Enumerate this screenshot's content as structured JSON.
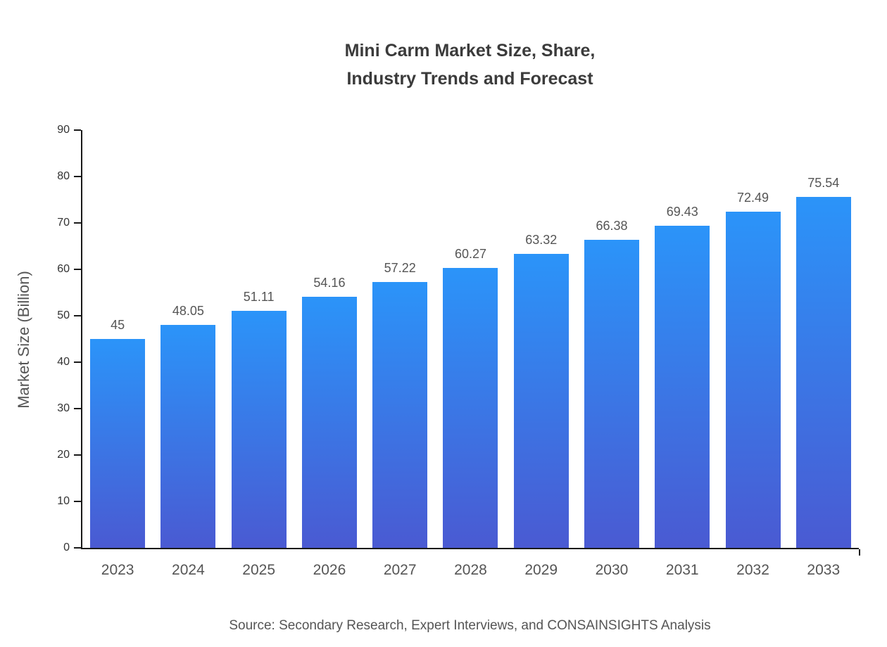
{
  "title": {
    "line1": "Mini Carm Market Size, Share,",
    "line2": "Industry Trends and Forecast"
  },
  "source": "Source: Secondary Research, Expert Interviews, and CONSAINSIGHTS Analysis",
  "chart_data": {
    "type": "bar",
    "title": "Mini Carm Market Size, Share, Industry Trends and Forecast",
    "categories": [
      "2023",
      "2024",
      "2025",
      "2026",
      "2027",
      "2028",
      "2029",
      "2030",
      "2031",
      "2032",
      "2033"
    ],
    "values": [
      45,
      48.05,
      51.11,
      54.16,
      57.22,
      60.27,
      63.32,
      66.38,
      69.43,
      72.49,
      75.54
    ],
    "value_labels": [
      "45",
      "48.05",
      "51.11",
      "54.16",
      "57.22",
      "60.27",
      "63.32",
      "66.38",
      "69.43",
      "72.49",
      "75.54"
    ],
    "xlabel": "",
    "ylabel": "Market Size (Billion)",
    "ylim": [
      0,
      90
    ],
    "yticks": [
      0,
      10,
      20,
      30,
      40,
      50,
      60,
      70,
      80,
      90
    ],
    "grid": false,
    "legend": false,
    "bar_gradient_top": "#2b94f9",
    "bar_gradient_bottom": "#4a5ad2",
    "axis_color": "#1a1a1a"
  }
}
